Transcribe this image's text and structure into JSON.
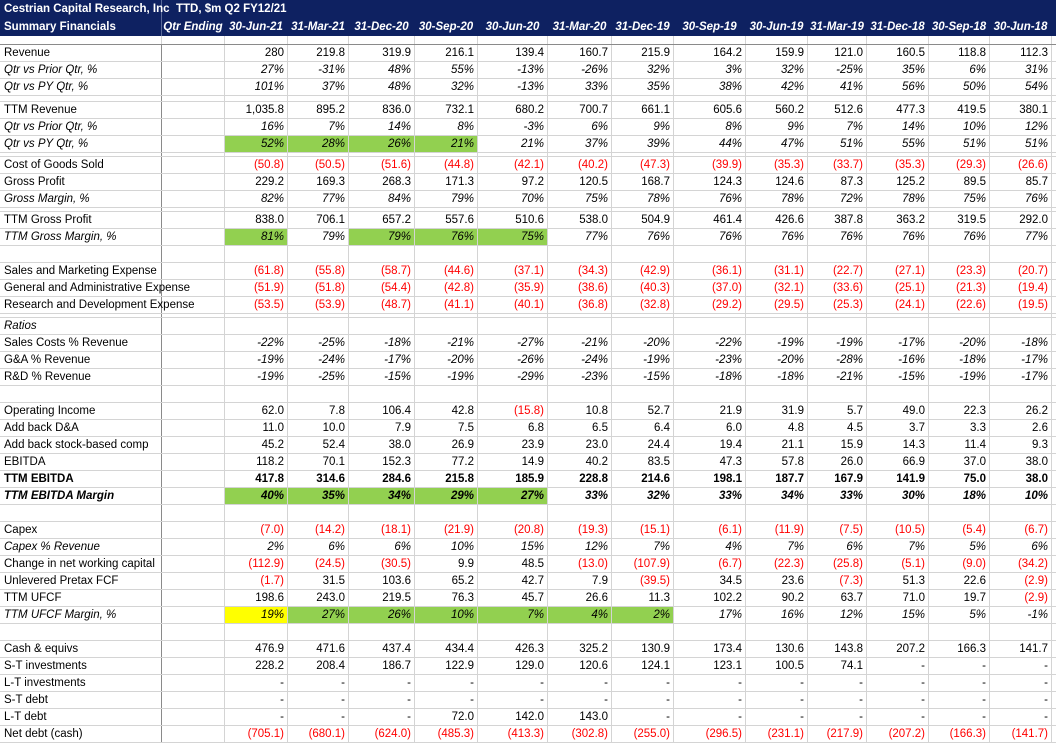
{
  "header": {
    "company": "Cestrian Capital Research, Inc",
    "subtitle": "Summary Financials",
    "ticker_line": "TTD, $m  Q2 FY12/21",
    "qtr_ending": "Qtr Ending",
    "dates": [
      "30-Jun-21",
      "31-Mar-21",
      "31-Dec-20",
      "30-Sep-20",
      "30-Jun-20",
      "31-Mar-20",
      "31-Dec-19",
      "30-Sep-19",
      "30-Jun-19",
      "31-Mar-19",
      "31-Dec-18",
      "30-Sep-18",
      "30-Jun-18"
    ]
  },
  "colors": {
    "header_bg": "#0e2161",
    "highlight_green": "#92d050",
    "highlight_yellow": "#ffff00",
    "negative": "#ff0000"
  },
  "rows": [
    {
      "type": "gap9"
    },
    {
      "label": "Revenue",
      "values": [
        "280",
        "219.8",
        "319.9",
        "216.1",
        "139.4",
        "160.7",
        "215.9",
        "164.2",
        "159.9",
        "121.0",
        "160.5",
        "118.8",
        "112.3"
      ]
    },
    {
      "label": "Qtr vs Prior Qtr, %",
      "style": "it",
      "vstyle": "it",
      "values": [
        "27%",
        "-31%",
        "48%",
        "55%",
        "-13%",
        "-26%",
        "32%",
        "3%",
        "32%",
        "-25%",
        "35%",
        "6%",
        "31%"
      ]
    },
    {
      "label": "Qtr vs PY Qtr, %",
      "style": "it",
      "vstyle": "it",
      "values": [
        "101%",
        "37%",
        "48%",
        "32%",
        "-13%",
        "33%",
        "35%",
        "38%",
        "42%",
        "41%",
        "56%",
        "50%",
        "54%"
      ]
    },
    {
      "type": "gap6"
    },
    {
      "label": "TTM Revenue",
      "values": [
        "1,035.8",
        "895.2",
        "836.0",
        "732.1",
        "680.2",
        "700.7",
        "661.1",
        "605.6",
        "560.2",
        "512.6",
        "477.3",
        "419.5",
        "380.1"
      ]
    },
    {
      "label": "Qtr vs Prior Qtr, %",
      "style": "it",
      "vstyle": "it",
      "values": [
        "16%",
        "7%",
        "14%",
        "8%",
        "-3%",
        "6%",
        "9%",
        "8%",
        "9%",
        "7%",
        "14%",
        "10%",
        "12%"
      ]
    },
    {
      "label": "Qtr vs PY Qtr, %",
      "style": "it",
      "vstyle": "it",
      "green": [
        0,
        1,
        2,
        3
      ],
      "values": [
        "52%",
        "28%",
        "26%",
        "21%",
        "21%",
        "37%",
        "39%",
        "44%",
        "47%",
        "51%",
        "55%",
        "51%",
        "51%"
      ]
    },
    {
      "type": "thin"
    },
    {
      "label": "Cost of Goods Sold",
      "values": [
        "(50.8)",
        "(50.5)",
        "(51.6)",
        "(44.8)",
        "(42.1)",
        "(40.2)",
        "(47.3)",
        "(39.9)",
        "(35.3)",
        "(33.7)",
        "(35.3)",
        "(29.3)",
        "(26.6)"
      ]
    },
    {
      "label": "Gross Profit",
      "values": [
        "229.2",
        "169.3",
        "268.3",
        "171.3",
        "97.2",
        "120.5",
        "168.7",
        "124.3",
        "124.6",
        "87.3",
        "125.2",
        "89.5",
        "85.7"
      ]
    },
    {
      "label": "Gross Margin, %",
      "style": "it",
      "vstyle": "it",
      "values": [
        "82%",
        "77%",
        "84%",
        "79%",
        "70%",
        "75%",
        "78%",
        "76%",
        "78%",
        "72%",
        "78%",
        "75%",
        "76%"
      ]
    },
    {
      "type": "thin"
    },
    {
      "label": "TTM Gross Profit",
      "values": [
        "838.0",
        "706.1",
        "657.2",
        "557.6",
        "510.6",
        "538.0",
        "504.9",
        "461.4",
        "426.6",
        "387.8",
        "363.2",
        "319.5",
        "292.0"
      ]
    },
    {
      "label": "TTM Gross Margin, %",
      "style": "it",
      "vstyle": "it",
      "green": [
        0,
        2,
        3,
        4
      ],
      "values": [
        "81%",
        "79%",
        "79%",
        "76%",
        "75%",
        "77%",
        "76%",
        "76%",
        "76%",
        "76%",
        "76%",
        "76%",
        "77%"
      ]
    },
    {
      "type": "blank"
    },
    {
      "label": "Sales and Marketing Expense",
      "values": [
        "(61.8)",
        "(55.8)",
        "(58.7)",
        "(44.6)",
        "(37.1)",
        "(34.3)",
        "(42.9)",
        "(36.1)",
        "(31.1)",
        "(22.7)",
        "(27.1)",
        "(23.3)",
        "(20.7)"
      ]
    },
    {
      "label": "General and Administrative Expense",
      "values": [
        "(51.9)",
        "(51.8)",
        "(54.4)",
        "(42.8)",
        "(35.9)",
        "(38.6)",
        "(40.3)",
        "(37.0)",
        "(32.1)",
        "(33.6)",
        "(25.1)",
        "(21.3)",
        "(19.4)"
      ]
    },
    {
      "label": "Research and Development Expense",
      "values": [
        "(53.5)",
        "(53.9)",
        "(48.7)",
        "(41.1)",
        "(40.1)",
        "(36.8)",
        "(32.8)",
        "(29.2)",
        "(29.5)",
        "(25.3)",
        "(24.1)",
        "(22.6)",
        "(19.5)"
      ]
    },
    {
      "type": "thin"
    },
    {
      "label": "Ratios",
      "style": "it",
      "values": [
        "",
        "",
        "",
        "",
        "",
        "",
        "",
        "",
        "",
        "",
        "",
        "",
        ""
      ]
    },
    {
      "label": "Sales Costs % Revenue",
      "vstyle": "it",
      "values": [
        "-22%",
        "-25%",
        "-18%",
        "-21%",
        "-27%",
        "-21%",
        "-20%",
        "-22%",
        "-19%",
        "-19%",
        "-17%",
        "-20%",
        "-18%"
      ]
    },
    {
      "label": "G&A % Revenue",
      "vstyle": "it",
      "values": [
        "-19%",
        "-24%",
        "-17%",
        "-20%",
        "-26%",
        "-24%",
        "-19%",
        "-23%",
        "-20%",
        "-28%",
        "-16%",
        "-18%",
        "-17%"
      ]
    },
    {
      "label": "R&D % Revenue",
      "vstyle": "it",
      "values": [
        "-19%",
        "-25%",
        "-15%",
        "-19%",
        "-29%",
        "-23%",
        "-15%",
        "-18%",
        "-18%",
        "-21%",
        "-15%",
        "-19%",
        "-17%"
      ]
    },
    {
      "type": "blank"
    },
    {
      "label": "Operating Income",
      "values": [
        "62.0",
        "7.8",
        "106.4",
        "42.8",
        "(15.8)",
        "10.8",
        "52.7",
        "21.9",
        "31.9",
        "5.7",
        "49.0",
        "22.3",
        "26.2"
      ]
    },
    {
      "label": "Add back D&A",
      "values": [
        "11.0",
        "10.0",
        "7.9",
        "7.5",
        "6.8",
        "6.5",
        "6.4",
        "6.0",
        "4.8",
        "4.5",
        "3.7",
        "3.3",
        "2.6"
      ]
    },
    {
      "label": "Add back stock-based comp",
      "values": [
        "45.2",
        "52.4",
        "38.0",
        "26.9",
        "23.9",
        "23.0",
        "24.4",
        "19.4",
        "21.1",
        "15.9",
        "14.3",
        "11.4",
        "9.3"
      ]
    },
    {
      "label": "EBITDA",
      "values": [
        "118.2",
        "70.1",
        "152.3",
        "77.2",
        "14.9",
        "40.2",
        "83.5",
        "47.3",
        "57.8",
        "26.0",
        "66.9",
        "37.0",
        "38.0"
      ]
    },
    {
      "label": "TTM EBITDA",
      "style": "bd",
      "vstyle": "bd",
      "values": [
        "417.8",
        "314.6",
        "284.6",
        "215.8",
        "185.9",
        "228.8",
        "214.6",
        "198.1",
        "187.7",
        "167.9",
        "141.9",
        "75.0",
        "38.0"
      ]
    },
    {
      "label": "TTM EBITDA Margin",
      "style": "bd it",
      "vstyle": "bd it",
      "green": [
        0,
        1,
        2,
        3,
        4
      ],
      "values": [
        "40%",
        "35%",
        "34%",
        "29%",
        "27%",
        "33%",
        "32%",
        "33%",
        "34%",
        "33%",
        "30%",
        "18%",
        "10%"
      ]
    },
    {
      "type": "blank"
    },
    {
      "label": "Capex",
      "values": [
        "(7.0)",
        "(14.2)",
        "(18.1)",
        "(21.9)",
        "(20.8)",
        "(19.3)",
        "(15.1)",
        "(6.1)",
        "(11.9)",
        "(7.5)",
        "(10.5)",
        "(5.4)",
        "(6.7)"
      ]
    },
    {
      "label": "Capex % Revenue",
      "style": "it",
      "vstyle": "it",
      "values": [
        "2%",
        "6%",
        "6%",
        "10%",
        "15%",
        "12%",
        "7%",
        "4%",
        "7%",
        "6%",
        "7%",
        "5%",
        "6%"
      ]
    },
    {
      "label": "Change in net working capital",
      "values": [
        "(112.9)",
        "(24.5)",
        "(30.5)",
        "9.9",
        "48.5",
        "(13.0)",
        "(107.9)",
        "(6.7)",
        "(22.3)",
        "(25.8)",
        "(5.1)",
        "(9.0)",
        "(34.2)"
      ]
    },
    {
      "label": "Unlevered Pretax FCF",
      "values": [
        "(1.7)",
        "31.5",
        "103.6",
        "65.2",
        "42.7",
        "7.9",
        "(39.5)",
        "34.5",
        "23.6",
        "(7.3)",
        "51.3",
        "22.6",
        "(2.9)"
      ]
    },
    {
      "label": "TTM UFCF",
      "values": [
        "198.6",
        "243.0",
        "219.5",
        "76.3",
        "45.7",
        "26.6",
        "11.3",
        "102.2",
        "90.2",
        "63.7",
        "71.0",
        "19.7",
        "(2.9)"
      ]
    },
    {
      "label": "TTM UFCF Margin, %",
      "style": "it",
      "vstyle": "it",
      "yellow": [
        0
      ],
      "green": [
        1,
        2,
        3,
        4,
        5,
        6
      ],
      "values": [
        "19%",
        "27%",
        "26%",
        "10%",
        "7%",
        "4%",
        "2%",
        "17%",
        "16%",
        "12%",
        "15%",
        "5%",
        "-1%"
      ]
    },
    {
      "type": "blank"
    },
    {
      "label": "Cash & equivs",
      "values": [
        "476.9",
        "471.6",
        "437.4",
        "434.4",
        "426.3",
        "325.2",
        "130.9",
        "173.4",
        "130.6",
        "143.8",
        "207.2",
        "166.3",
        "141.7"
      ]
    },
    {
      "label": "S-T investments",
      "values": [
        "228.2",
        "208.4",
        "186.7",
        "122.9",
        "129.0",
        "120.6",
        "124.1",
        "123.1",
        "100.5",
        "74.1",
        "-",
        "-",
        "-"
      ]
    },
    {
      "label": "L-T investments",
      "values": [
        "-",
        "-",
        "-",
        "-",
        "-",
        "-",
        "-",
        "-",
        "-",
        "-",
        "-",
        "-",
        "-"
      ]
    },
    {
      "label": "S-T debt",
      "values": [
        "-",
        "-",
        "-",
        "-",
        "-",
        "-",
        "-",
        "-",
        "-",
        "-",
        "-",
        "-",
        "-"
      ]
    },
    {
      "label": "L-T debt",
      "values": [
        "-",
        "-",
        "-",
        "72.0",
        "142.0",
        "143.0",
        "-",
        "-",
        "-",
        "-",
        "-",
        "-",
        "-"
      ]
    },
    {
      "label": "Net debt (cash)",
      "values": [
        "(705.1)",
        "(680.1)",
        "(624.0)",
        "(485.3)",
        "(413.3)",
        "(302.8)",
        "(255.0)",
        "(296.5)",
        "(231.1)",
        "(217.9)",
        "(207.2)",
        "(166.3)",
        "(141.7)"
      ]
    }
  ]
}
